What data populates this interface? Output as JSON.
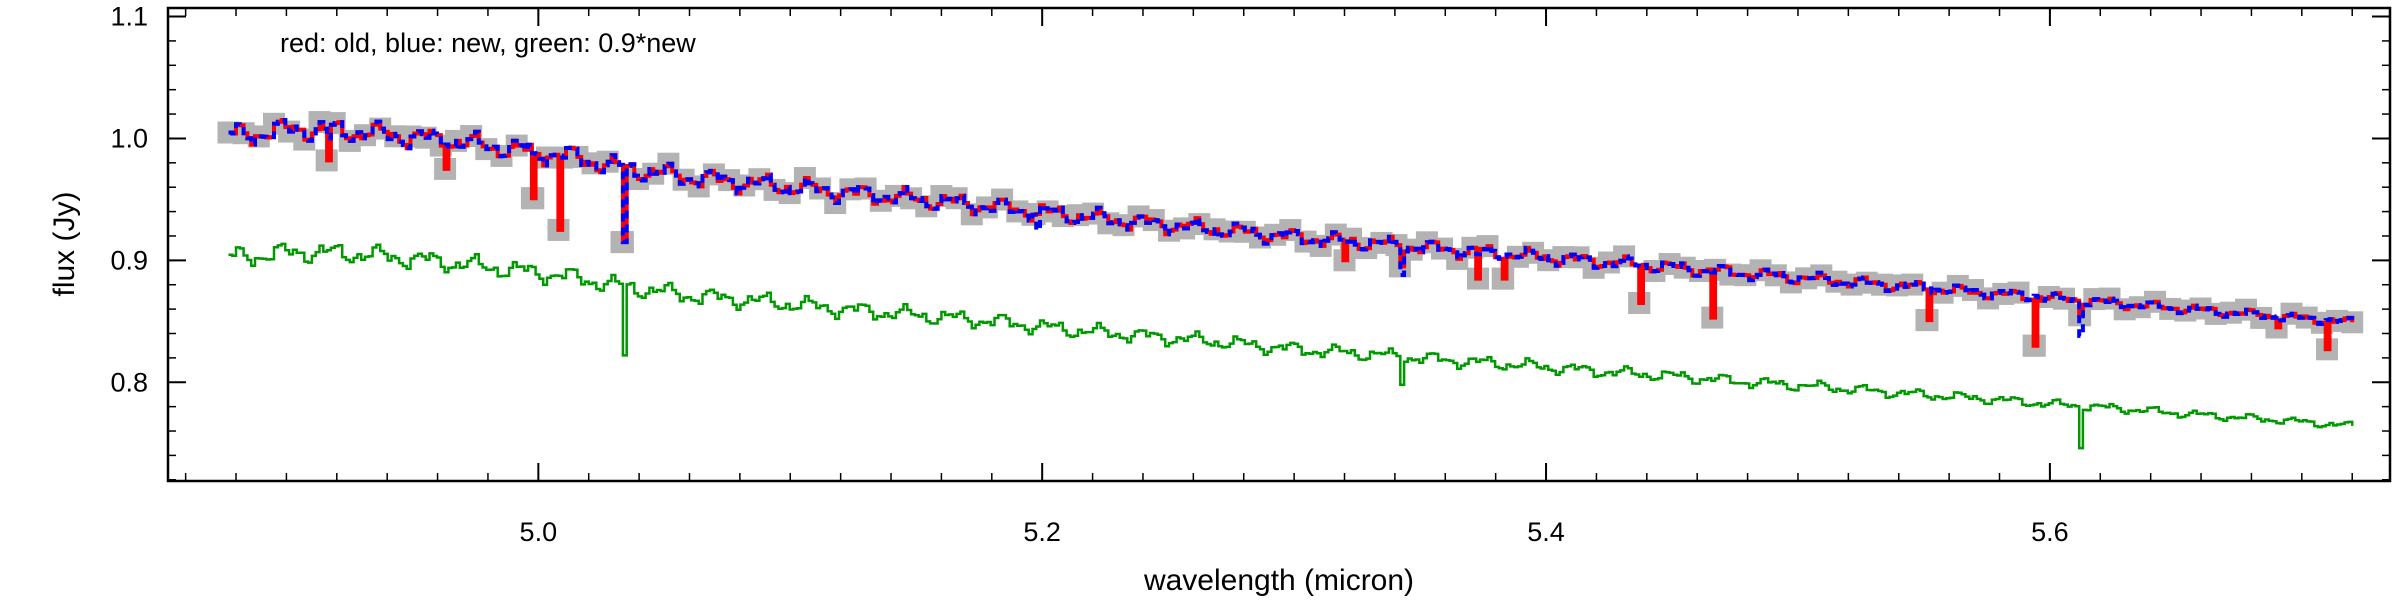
{
  "chart_data": {
    "type": "line",
    "title": "",
    "annotation": "red: old, blue: new, green: 0.9*new",
    "xlabel": "wavelength (micron)",
    "ylabel": "flux (Jy)",
    "xlim": [
      4.853,
      5.735
    ],
    "ylim": [
      0.719,
      1.107
    ],
    "xticks": [
      {
        "value": 5.0,
        "label": "5.0"
      },
      {
        "value": 5.2,
        "label": "5.2"
      },
      {
        "value": 5.4,
        "label": "5.4"
      },
      {
        "value": 5.6,
        "label": "5.6"
      }
    ],
    "yticks": [
      {
        "value": 0.8,
        "label": "0.8"
      },
      {
        "value": 0.9,
        "label": "0.9"
      },
      {
        "value": 1.0,
        "label": "1.0"
      },
      {
        "value": 1.1,
        "label": "1.1"
      }
    ],
    "grid": false,
    "series": [
      {
        "name": "old",
        "color": "#ff0000",
        "style": "solid",
        "error_band_color": "#b3b3b3",
        "x": [
          4.877,
          4.905,
          4.93,
          4.96,
          4.99,
          5.01,
          5.035,
          5.06,
          5.09,
          5.12,
          5.15,
          5.18,
          5.21,
          5.24,
          5.27,
          5.3,
          5.33,
          5.36,
          5.39,
          5.42,
          5.45,
          5.48,
          5.51,
          5.54,
          5.57,
          5.6,
          5.63,
          5.66,
          5.69,
          5.72
        ],
        "y": [
          1.002,
          1.008,
          1.005,
          0.999,
          0.991,
          0.986,
          0.975,
          0.968,
          0.962,
          0.956,
          0.95,
          0.944,
          0.937,
          0.931,
          0.925,
          0.919,
          0.914,
          0.909,
          0.904,
          0.899,
          0.894,
          0.889,
          0.884,
          0.879,
          0.874,
          0.869,
          0.864,
          0.859,
          0.854,
          0.849
        ]
      },
      {
        "name": "new",
        "color": "#0000ff",
        "style": "dashed",
        "x": [
          4.877,
          4.905,
          4.93,
          4.96,
          4.99,
          5.01,
          5.035,
          5.06,
          5.09,
          5.12,
          5.15,
          5.18,
          5.21,
          5.24,
          5.27,
          5.3,
          5.33,
          5.36,
          5.39,
          5.42,
          5.45,
          5.48,
          5.51,
          5.54,
          5.57,
          5.6,
          5.63,
          5.66,
          5.69,
          5.72
        ],
        "y": [
          1.002,
          1.008,
          1.005,
          0.999,
          0.991,
          0.986,
          0.975,
          0.968,
          0.962,
          0.956,
          0.95,
          0.944,
          0.937,
          0.931,
          0.925,
          0.919,
          0.914,
          0.909,
          0.904,
          0.899,
          0.894,
          0.889,
          0.884,
          0.879,
          0.874,
          0.869,
          0.864,
          0.859,
          0.854,
          0.849
        ]
      },
      {
        "name": "0.9*new",
        "color": "#009900",
        "style": "solid",
        "x": [
          4.877,
          4.905,
          4.93,
          4.96,
          4.99,
          5.01,
          5.035,
          5.06,
          5.09,
          5.12,
          5.15,
          5.18,
          5.21,
          5.24,
          5.27,
          5.3,
          5.33,
          5.36,
          5.39,
          5.42,
          5.45,
          5.48,
          5.51,
          5.54,
          5.57,
          5.6,
          5.63,
          5.66,
          5.69,
          5.72
        ],
        "y": [
          0.902,
          0.907,
          0.905,
          0.899,
          0.892,
          0.887,
          0.878,
          0.871,
          0.866,
          0.86,
          0.855,
          0.85,
          0.843,
          0.838,
          0.833,
          0.827,
          0.823,
          0.818,
          0.814,
          0.809,
          0.805,
          0.8,
          0.796,
          0.791,
          0.787,
          0.782,
          0.778,
          0.773,
          0.769,
          0.764
        ]
      }
    ],
    "absorption_dips": [
      {
        "x": 4.916,
        "old": 0.982,
        "new": 1.0
      },
      {
        "x": 4.963,
        "old": 0.975,
        "new": 0.995
      },
      {
        "x": 4.998,
        "old": 0.951,
        "new": 0.988
      },
      {
        "x": 5.008,
        "old": 0.925,
        "new": 0.986
      },
      {
        "x": 5.033,
        "old": 0.915,
        "new": 0.915
      },
      {
        "x": 5.197,
        "old": 0.938,
        "new": 0.925
      },
      {
        "x": 5.32,
        "old": 0.9,
        "new": 0.918
      },
      {
        "x": 5.342,
        "old": 0.895,
        "new": 0.888
      },
      {
        "x": 5.373,
        "old": 0.885,
        "new": 0.905
      },
      {
        "x": 5.383,
        "old": 0.885,
        "new": 0.903
      },
      {
        "x": 5.437,
        "old": 0.865,
        "new": 0.895
      },
      {
        "x": 5.466,
        "old": 0.853,
        "new": 0.89
      },
      {
        "x": 5.551,
        "old": 0.851,
        "new": 0.877
      },
      {
        "x": 5.594,
        "old": 0.83,
        "new": 0.871
      },
      {
        "x": 5.612,
        "old": 0.855,
        "new": 0.838
      },
      {
        "x": 5.69,
        "old": 0.845,
        "new": 0.854
      },
      {
        "x": 5.71,
        "old": 0.827,
        "new": 0.851
      }
    ],
    "green_dips": [
      {
        "x": 5.033,
        "y": 0.822
      },
      {
        "x": 5.342,
        "y": 0.798
      },
      {
        "x": 5.612,
        "y": 0.746
      }
    ]
  }
}
